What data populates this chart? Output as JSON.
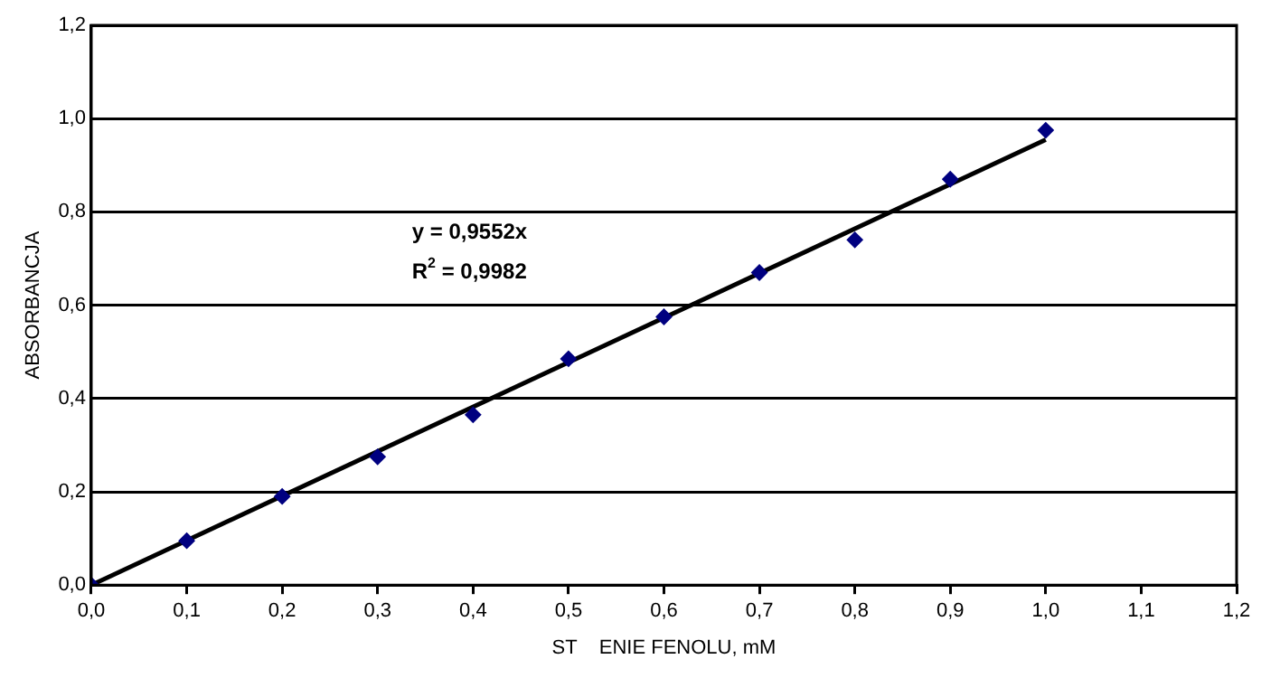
{
  "chart_data": {
    "type": "scatter",
    "xlabel": "ST    ENIE FENOLU, mM",
    "ylabel": "ABSORBANCJA",
    "series": [
      {
        "type": "scatter",
        "color": "#000080",
        "marker": "diamond",
        "x": [
          0,
          0.1,
          0.2,
          0.3,
          0.4,
          0.5,
          0.6,
          0.7,
          0.8,
          0.9,
          1.0
        ],
        "values": [
          0,
          0.095,
          0.19,
          0.275,
          0.365,
          0.485,
          0.575,
          0.67,
          0.74,
          0.87,
          0.975
        ]
      },
      {
        "type": "line",
        "color": "#000000",
        "marker": "none",
        "x": [
          0,
          1.0
        ],
        "values": [
          0,
          0.955
        ]
      }
    ],
    "xlim": [
      0,
      1.2
    ],
    "ylim": [
      0,
      1.2
    ],
    "xticks": [
      {
        "value": 0,
        "label": "0,0"
      },
      {
        "value": 0.1,
        "label": "0,1"
      },
      {
        "value": 0.2,
        "label": "0,2"
      },
      {
        "value": 0.3,
        "label": "0,3"
      },
      {
        "value": 0.4,
        "label": "0,4"
      },
      {
        "value": 0.5,
        "label": "0,5"
      },
      {
        "value": 0.6,
        "label": "0,6"
      },
      {
        "value": 0.7,
        "label": "0,7"
      },
      {
        "value": 0.8,
        "label": "0,8"
      },
      {
        "value": 0.9,
        "label": "0,9"
      },
      {
        "value": 1.0,
        "label": "1,0"
      },
      {
        "value": 1.1,
        "label": "1,1"
      },
      {
        "value": 1.2,
        "label": "1,2"
      }
    ],
    "yticks": [
      {
        "value": 0,
        "label": "0,0"
      },
      {
        "value": 0.2,
        "label": "0,2"
      },
      {
        "value": 0.4,
        "label": "0,4"
      },
      {
        "value": 0.6,
        "label": "0,6"
      },
      {
        "value": 0.8,
        "label": "0,8"
      },
      {
        "value": 1.0,
        "label": "1,0"
      },
      {
        "value": 1.2,
        "label": "1,2"
      }
    ],
    "grid": "y",
    "legend": false,
    "annotations": [
      "y = 0,9552x",
      "R$^{2}$ = 0,9982"
    ]
  }
}
